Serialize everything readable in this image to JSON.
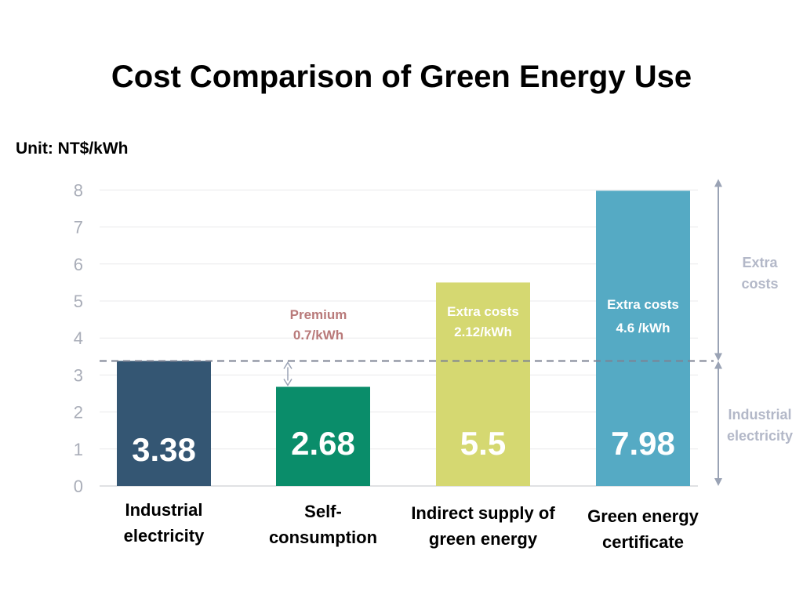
{
  "page": {
    "title": "Cost Comparison of Green Energy Use",
    "unit": "Unit: NT$/kWh"
  },
  "chart_data": {
    "type": "bar",
    "title": "Cost Comparison of Green Energy Use",
    "categories": [
      "Industrial electricity",
      "Self-consumption",
      "Indirect supply of green energy",
      "Green energy certificate"
    ],
    "category_lines": [
      [
        "Industrial",
        "electricity"
      ],
      [
        "Self-",
        "consumption"
      ],
      [
        "Indirect supply of",
        "green energy"
      ],
      [
        "Green energy",
        "certificate"
      ]
    ],
    "values": [
      3.38,
      2.68,
      5.5,
      7.98
    ],
    "value_labels": [
      "3.38",
      "2.68",
      "5.5",
      "7.98"
    ],
    "colors": [
      "#345673",
      "#0a8d6a",
      "#d5d871",
      "#55aac4"
    ],
    "yticks": [
      0,
      1,
      2,
      3,
      4,
      5,
      6,
      7,
      8
    ],
    "ylim": [
      0,
      8
    ],
    "grid": true,
    "reference_line": 3.38,
    "annotations": [
      {
        "bar": 1,
        "lines": [
          "Premium",
          "0.7/kWh"
        ],
        "color": "#b97a7a"
      },
      {
        "bar": 2,
        "lines": [
          "Extra costs",
          "2.12/kWh"
        ],
        "color": "#ffffff"
      },
      {
        "bar": 3,
        "lines": [
          "Extra costs",
          "4.6 /kWh"
        ],
        "color": "#ffffff"
      }
    ],
    "side_labels": {
      "upper": [
        "Extra",
        "costs"
      ],
      "lower": [
        "Industrial",
        "electricity"
      ]
    }
  }
}
